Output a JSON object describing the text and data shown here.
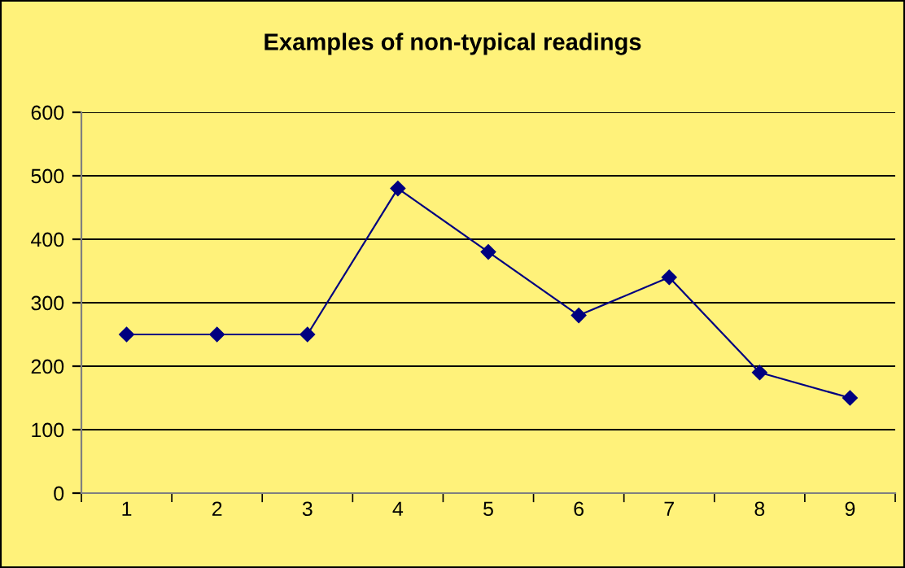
{
  "chart_data": {
    "type": "line",
    "title": "Examples of non-typical readings",
    "categories": [
      "1",
      "2",
      "3",
      "4",
      "5",
      "6",
      "7",
      "8",
      "9"
    ],
    "series": [
      {
        "color": "#000080",
        "values": [
          250,
          250,
          250,
          480,
          380,
          280,
          340,
          190,
          150
        ]
      }
    ],
    "ylim": [
      0,
      600
    ],
    "yticks": [
      0,
      100,
      200,
      300,
      400,
      500,
      600
    ],
    "grid": "y",
    "marker": "diamond",
    "line_style": "solid",
    "legend": false
  }
}
